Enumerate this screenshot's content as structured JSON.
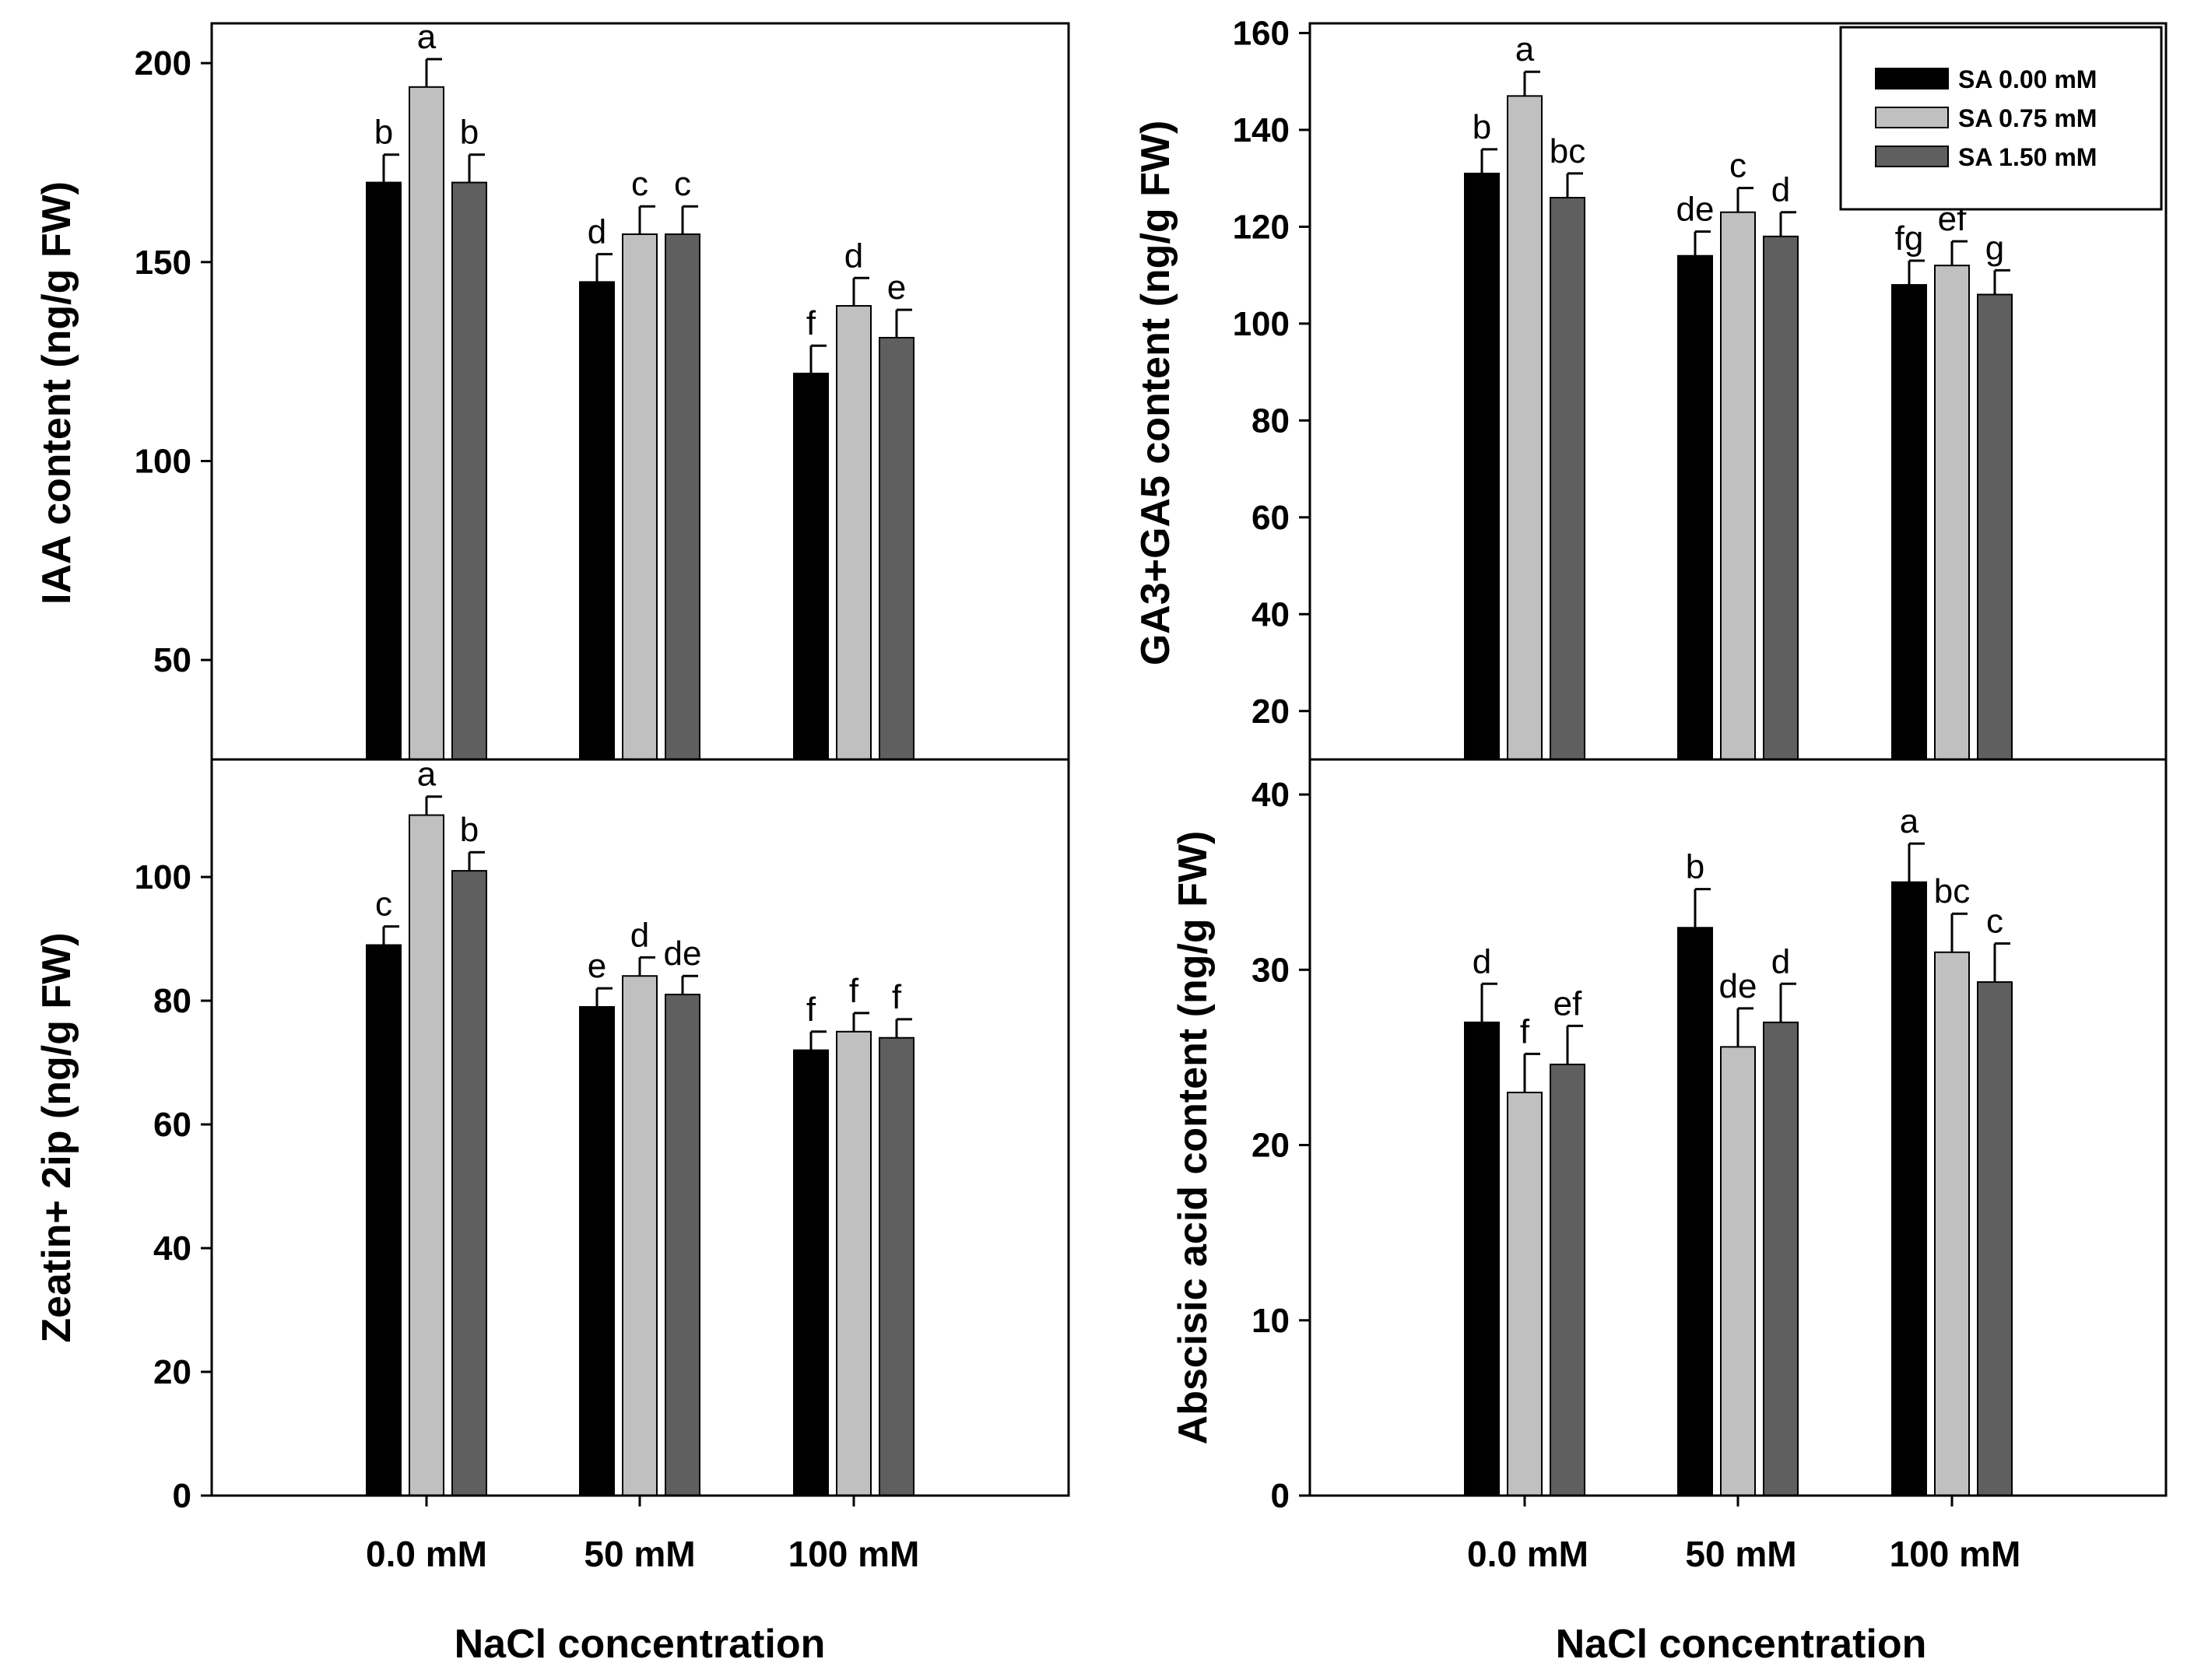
{
  "series": [
    {
      "name": "SA 0.00 mM",
      "color": "#000000"
    },
    {
      "name": "SA 0.75 mM",
      "color": "#c0c0c0"
    },
    {
      "name": "SA 1.50 mM",
      "color": "#5f5f5f"
    }
  ],
  "chart_data": [
    {
      "id": "iaa",
      "type": "bar",
      "title": "",
      "xlabel": "",
      "ylabel": "IAA content (ng/g FW)",
      "ylim": [
        25,
        210
      ],
      "yticks": [
        50,
        100,
        150,
        200
      ],
      "categories": [
        "0.0 mM",
        "50 mM",
        "100 mM"
      ],
      "series": [
        {
          "name": "SA 0.00 mM",
          "values": [
            170,
            145,
            122
          ],
          "errors": [
            7,
            7,
            7
          ],
          "letters": [
            "b",
            "d",
            "f"
          ]
        },
        {
          "name": "SA 0.75 mM",
          "values": [
            194,
            157,
            139
          ],
          "errors": [
            7,
            7,
            7
          ],
          "letters": [
            "a",
            "c",
            "d"
          ]
        },
        {
          "name": "SA 1.50 mM",
          "values": [
            170,
            157,
            131
          ],
          "errors": [
            7,
            7,
            7
          ],
          "letters": [
            "b",
            "c",
            "e"
          ]
        }
      ]
    },
    {
      "id": "ga",
      "type": "bar",
      "title": "",
      "xlabel": "",
      "ylabel": "GA3+GA5 content (ng/g FW)",
      "ylim": [
        10,
        162
      ],
      "yticks": [
        20,
        40,
        60,
        80,
        100,
        120,
        140,
        160
      ],
      "categories": [
        "0.0 mM",
        "50 mM",
        "100 mM"
      ],
      "legend_position": "top-right",
      "series": [
        {
          "name": "SA 0.00 mM",
          "values": [
            131,
            114,
            108
          ],
          "errors": [
            5,
            5,
            5
          ],
          "letters": [
            "b",
            "de",
            "fg"
          ]
        },
        {
          "name": "SA 0.75 mM",
          "values": [
            147,
            123,
            112
          ],
          "errors": [
            5,
            5,
            5
          ],
          "letters": [
            "a",
            "c",
            "ef"
          ]
        },
        {
          "name": "SA 1.50 mM",
          "values": [
            126,
            118,
            106
          ],
          "errors": [
            5,
            5,
            5
          ],
          "letters": [
            "bc",
            "d",
            "g"
          ]
        }
      ]
    },
    {
      "id": "zeatin",
      "type": "bar",
      "title": "",
      "xlabel": "NaCl concentration",
      "ylabel": "Zeatin+ 2ip (ng/g FW)",
      "ylim": [
        0,
        119
      ],
      "yticks": [
        0,
        20,
        40,
        60,
        80,
        100
      ],
      "categories": [
        "0.0 mM",
        "50 mM",
        "100 mM"
      ],
      "series": [
        {
          "name": "SA 0.00 mM",
          "values": [
            89,
            79,
            72
          ],
          "errors": [
            3,
            3,
            3
          ],
          "letters": [
            "c",
            "e",
            "f"
          ]
        },
        {
          "name": "SA 0.75 mM",
          "values": [
            110,
            84,
            75
          ],
          "errors": [
            3,
            3,
            3
          ],
          "letters": [
            "a",
            "d",
            "f"
          ]
        },
        {
          "name": "SA 1.50 mM",
          "values": [
            101,
            81,
            74
          ],
          "errors": [
            3,
            3,
            3
          ],
          "letters": [
            "b",
            "de",
            "f"
          ]
        }
      ]
    },
    {
      "id": "aba",
      "type": "bar",
      "title": "",
      "xlabel": "NaCl concentration",
      "ylabel": "Abscisic acid content (ng/g FW)",
      "ylim": [
        0,
        42
      ],
      "yticks": [
        0,
        10,
        20,
        30,
        40
      ],
      "categories": [
        "0.0 mM",
        "50 mM",
        "100 mM"
      ],
      "series": [
        {
          "name": "SA 0.00 mM",
          "values": [
            27,
            32.4,
            35
          ],
          "errors": [
            2.2,
            2.2,
            2.2
          ],
          "letters": [
            "d",
            "b",
            "a"
          ]
        },
        {
          "name": "SA 0.75 mM",
          "values": [
            23,
            25.6,
            31
          ],
          "errors": [
            2.2,
            2.2,
            2.2
          ],
          "letters": [
            "f",
            "de",
            "bc"
          ]
        },
        {
          "name": "SA 1.50 mM",
          "values": [
            24.6,
            27,
            29.3
          ],
          "errors": [
            2.2,
            2.2,
            2.2
          ],
          "letters": [
            "ef",
            "d",
            "c"
          ]
        }
      ]
    }
  ]
}
